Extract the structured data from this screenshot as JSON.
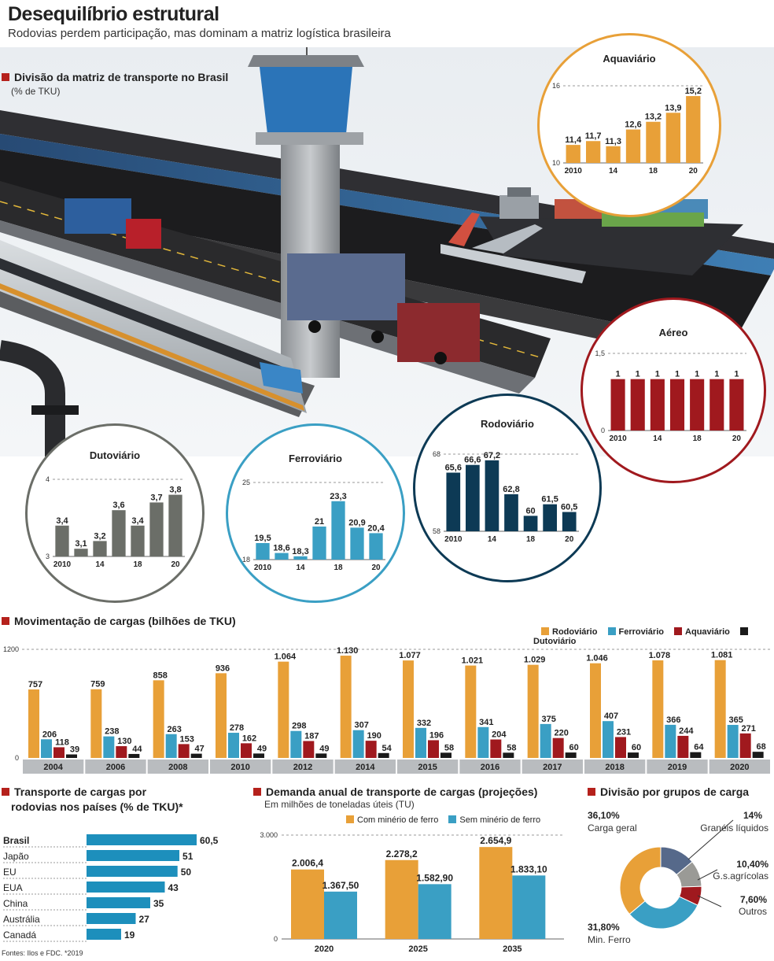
{
  "header": {
    "title": "Desequilíbrio estrutural",
    "subtitle": "Rodovias perdem participação, mas dominam a matriz logística brasileira"
  },
  "colors": {
    "rodo": "#0d3a55",
    "ferro": "#3a9fc4",
    "aqua": "#e8a038",
    "aereo": "#a0191e",
    "duto": "#6b6e68",
    "accent": "#b5211c"
  },
  "matrix_section": {
    "title": "Divisão da matriz de transporte no Brasil",
    "unit": "(% de TKU)"
  },
  "cargas_section": {
    "title": "Movimentação de cargas (bilhões de TKU)"
  },
  "rodovias_section": {
    "title_line1": "Transporte de cargas por",
    "title_line2": "rodovias nos países (% de TKU)*"
  },
  "demanda_section": {
    "title": "Demanda anual de transporte de cargas (projeções)",
    "unit": "Em milhões de toneladas úteis (TU)"
  },
  "grupos_section": {
    "title": "Divisão por grupos de carga"
  },
  "footer": {
    "source": "Fontes: Ilos e FDC. *2019"
  },
  "chart_data": [
    {
      "id": "aquaviario",
      "type": "bar",
      "title": "Aquaviário",
      "categories": [
        "2010",
        "",
        "14",
        "",
        "18",
        "",
        "20"
      ],
      "values": [
        11.4,
        11.7,
        11.3,
        12.6,
        13.2,
        13.9,
        15.2
      ],
      "labels": [
        "11,4",
        "11,7",
        "11,3",
        "12,6",
        "13,2",
        "13,9",
        "15,2"
      ],
      "ylim": [
        10,
        16
      ],
      "yticks": [
        "10",
        "16"
      ],
      "color": "#e8a038"
    },
    {
      "id": "aereo",
      "type": "bar",
      "title": "Aéreo",
      "categories": [
        "2010",
        "",
        "14",
        "",
        "18",
        "",
        "20"
      ],
      "values": [
        1,
        1,
        1,
        1,
        1,
        1,
        1
      ],
      "labels": [
        "1",
        "1",
        "1",
        "1",
        "1",
        "1",
        "1"
      ],
      "ylim": [
        0,
        1.5
      ],
      "yticks": [
        "0",
        "1,5"
      ],
      "color": "#a0191e"
    },
    {
      "id": "rodoviario",
      "type": "bar",
      "title": "Rodoviário",
      "categories": [
        "2010",
        "",
        "14",
        "",
        "18",
        "",
        "20"
      ],
      "values": [
        65.6,
        66.6,
        67.2,
        62.8,
        60,
        61.5,
        60.5
      ],
      "labels": [
        "65,6",
        "66,6",
        "67,2",
        "62,8",
        "60",
        "61,5",
        "60,5"
      ],
      "ylim": [
        58,
        68
      ],
      "yticks": [
        "58",
        "68"
      ],
      "color": "#0d3a55"
    },
    {
      "id": "ferroviario",
      "type": "bar",
      "title": "Ferroviário",
      "categories": [
        "2010",
        "",
        "14",
        "",
        "18",
        "",
        "20"
      ],
      "values": [
        19.5,
        18.6,
        18.3,
        21,
        23.3,
        20.9,
        20.4
      ],
      "labels": [
        "19,5",
        "18,6",
        "18,3",
        "21",
        "23,3",
        "20,9",
        "20,4"
      ],
      "ylim": [
        18,
        25
      ],
      "yticks": [
        "18",
        "25"
      ],
      "color": "#3a9fc4"
    },
    {
      "id": "dutoviario",
      "type": "bar",
      "title": "Dutoviário",
      "categories": [
        "2010",
        "",
        "14",
        "",
        "18",
        "",
        "20"
      ],
      "values": [
        3.4,
        3.1,
        3.2,
        3.6,
        3.4,
        3.7,
        3.8
      ],
      "labels": [
        "3,4",
        "3,1",
        "3,2",
        "3,6",
        "3,4",
        "3,7",
        "3,8"
      ],
      "ylim": [
        3,
        4
      ],
      "yticks": [
        "3",
        "4"
      ],
      "color": "#6b6e68"
    },
    {
      "id": "movimentacao",
      "type": "bar",
      "categories": [
        "2004",
        "2006",
        "2008",
        "2010",
        "2012",
        "2014",
        "2015",
        "2016",
        "2017",
        "2018",
        "2019",
        "2020"
      ],
      "ylim": [
        0,
        1200
      ],
      "yticks": [
        "0",
        "1200"
      ],
      "series": [
        {
          "name": "Rodoviário",
          "color": "#e8a038",
          "values": [
            757,
            759,
            858,
            936,
            1064,
            1130,
            1077,
            1021,
            1029,
            1046,
            1078,
            1081
          ],
          "labels": [
            "757",
            "759",
            "858",
            "936",
            "1.064",
            "1.130",
            "1.077",
            "1.021",
            "1.029",
            "1.046",
            "1.078",
            "1.081"
          ]
        },
        {
          "name": "Ferroviário",
          "color": "#3a9fc4",
          "values": [
            206,
            238,
            263,
            278,
            298,
            307,
            332,
            341,
            375,
            407,
            366,
            365
          ],
          "labels": [
            "206",
            "238",
            "263",
            "278",
            "298",
            "307",
            "332",
            "341",
            "375",
            "407",
            "366",
            "365"
          ]
        },
        {
          "name": "Aquaviário",
          "color": "#a0191e",
          "values": [
            118,
            130,
            153,
            162,
            187,
            190,
            196,
            204,
            220,
            231,
            244,
            271
          ],
          "labels": [
            "118",
            "130",
            "153",
            "162",
            "187",
            "190",
            "196",
            "204",
            "220",
            "231",
            "244",
            "271"
          ]
        },
        {
          "name": "Dutoviário",
          "color": "#1a1a1a",
          "values": [
            39,
            44,
            47,
            49,
            49,
            54,
            58,
            58,
            60,
            60,
            64,
            68
          ],
          "labels": [
            "39",
            "44",
            "47",
            "49",
            "49",
            "54",
            "58",
            "58",
            "60",
            "60",
            "64",
            "68"
          ]
        }
      ]
    },
    {
      "id": "paises",
      "type": "bar",
      "orientation": "horizontal",
      "categories": [
        "Brasil",
        "Japão",
        "EU",
        "EUA",
        "China",
        "Austrália",
        "Canadá"
      ],
      "values": [
        60.5,
        51,
        50,
        43,
        35,
        27,
        19
      ],
      "labels": [
        "60,5",
        "51",
        "50",
        "43",
        "35",
        "27",
        "19"
      ],
      "xlim": [
        0,
        60.5
      ],
      "color": "#1d8fbc"
    },
    {
      "id": "demanda",
      "type": "bar",
      "categories": [
        "2020",
        "2025",
        "2035"
      ],
      "ylim": [
        0,
        3000
      ],
      "yticks": [
        "0",
        "3.000"
      ],
      "series": [
        {
          "name": "Com minério de ferro",
          "color": "#e8a038",
          "values": [
            2006.4,
            2278.2,
            2654.9
          ],
          "labels": [
            "2.006,4",
            "2.278,2",
            "2.654,9"
          ]
        },
        {
          "name": "Sem minério de ferro",
          "color": "#3a9fc4",
          "values": [
            1367.5,
            1582.9,
            1833.1
          ],
          "labels": [
            "1.367,50",
            "1.582,90",
            "1.833,10"
          ]
        }
      ]
    },
    {
      "id": "grupos",
      "type": "pie",
      "slices": [
        {
          "name": "Carga geral",
          "value": 36.1,
          "label": "36,10%",
          "color": "#e8a038"
        },
        {
          "name": "Granéis líquidos",
          "value": 14,
          "label": "14%",
          "color": "#56698a"
        },
        {
          "name": "G.s.agrícolas",
          "value": 10.4,
          "label": "10,40%",
          "color": "#9a9a96"
        },
        {
          "name": "Outros",
          "value": 7.6,
          "label": "7,60%",
          "color": "#a0191e"
        },
        {
          "name": "Min. Ferro",
          "value": 31.8,
          "label": "31,80%",
          "color": "#3a9fc4"
        }
      ]
    }
  ]
}
